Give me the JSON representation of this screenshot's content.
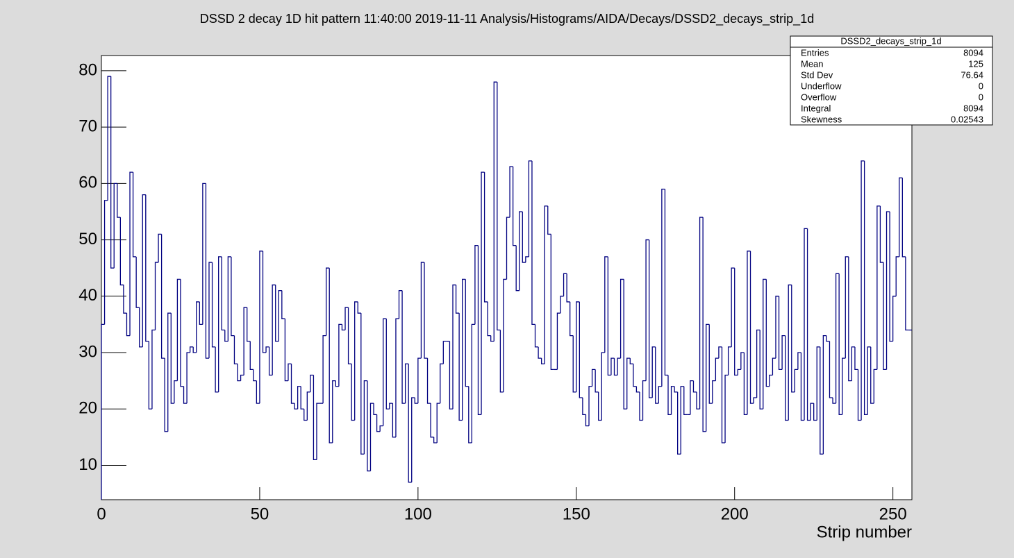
{
  "chart_data": {
    "type": "histogram",
    "title": "DSSD 2 decay 1D hit pattern  11:40:00  2019-11-11  Analysis/Histograms/AIDA/Decays/DSSD2_decays_strip_1d",
    "x_label": "Strip number",
    "color": "#000080",
    "xlim": [
      0,
      256
    ],
    "xticks": [
      0,
      50,
      100,
      150,
      200,
      250
    ],
    "ylim": [
      3.9,
      82.7
    ],
    "yticks": [
      10,
      20,
      30,
      40,
      50,
      60,
      70,
      80
    ],
    "bins": [
      0,
      1,
      2,
      3,
      4,
      5,
      6,
      7,
      8,
      9,
      10,
      11,
      12,
      13,
      14,
      15,
      16,
      17,
      18,
      19,
      20,
      21,
      22,
      23,
      24,
      25,
      26,
      27,
      28,
      29,
      30,
      31,
      32,
      33,
      34,
      35,
      36,
      37,
      38,
      39,
      40,
      41,
      42,
      43,
      44,
      45,
      46,
      47,
      48,
      49,
      50,
      51,
      52,
      53,
      54,
      55,
      56,
      57,
      58,
      59,
      60,
      61,
      62,
      63,
      64,
      65,
      66,
      67,
      68,
      69,
      70,
      71,
      72,
      73,
      74,
      75,
      76,
      77,
      78,
      79,
      80,
      81,
      82,
      83,
      84,
      85,
      86,
      87,
      88,
      89,
      90,
      91,
      92,
      93,
      94,
      95,
      96,
      97,
      98,
      99,
      100,
      101,
      102,
      103,
      104,
      105,
      106,
      107,
      108,
      109,
      110,
      111,
      112,
      113,
      114,
      115,
      116,
      117,
      118,
      119,
      120,
      121,
      122,
      123,
      124,
      125,
      126,
      127,
      128,
      129,
      130,
      131,
      132,
      133,
      134,
      135,
      136,
      137,
      138,
      139,
      140,
      141,
      142,
      143,
      144,
      145,
      146,
      147,
      148,
      149,
      150,
      151,
      152,
      153,
      154,
      155,
      156,
      157,
      158,
      159,
      160,
      161,
      162,
      163,
      164,
      165,
      166,
      167,
      168,
      169,
      170,
      171,
      172,
      173,
      174,
      175,
      176,
      177,
      178,
      179,
      180,
      181,
      182,
      183,
      184,
      185,
      186,
      187,
      188,
      189,
      190,
      191,
      192,
      193,
      194,
      195,
      196,
      197,
      198,
      199,
      200,
      201,
      202,
      203,
      204,
      205,
      206,
      207,
      208,
      209,
      210,
      211,
      212,
      213,
      214,
      215,
      216,
      217,
      218,
      219,
      220,
      221,
      222,
      223,
      224,
      225,
      226,
      227,
      228,
      229,
      230,
      231,
      232,
      233,
      234,
      235,
      236,
      237,
      238,
      239,
      240,
      241,
      242,
      243,
      244,
      245,
      246,
      247,
      248,
      249,
      250,
      251,
      252,
      253,
      254,
      255,
      256
    ],
    "values": [
      35,
      57,
      79,
      45,
      60,
      54,
      42,
      37,
      33,
      62,
      47,
      38,
      31,
      58,
      32,
      20,
      34,
      46,
      51,
      29,
      16,
      37,
      21,
      25,
      43,
      24,
      21,
      30,
      31,
      30,
      39,
      35,
      60,
      29,
      46,
      31,
      23,
      47,
      34,
      32,
      47,
      33,
      28,
      25,
      26,
      38,
      32,
      27,
      25,
      21,
      48,
      30,
      31,
      26,
      42,
      32,
      41,
      36,
      25,
      28,
      21,
      20,
      24,
      20,
      18,
      23,
      26,
      11,
      21,
      21,
      33,
      45,
      14,
      25,
      24,
      35,
      34,
      38,
      28,
      18,
      39,
      37,
      12,
      25,
      9,
      21,
      19,
      16,
      17,
      36,
      20,
      21,
      15,
      36,
      41,
      21,
      28,
      7,
      22,
      21,
      29,
      46,
      29,
      21,
      15,
      14,
      21,
      28,
      32,
      32,
      20,
      42,
      37,
      18,
      43,
      24,
      14,
      35,
      49,
      19,
      62,
      39,
      33,
      32,
      78,
      34,
      23,
      43,
      54,
      63,
      49,
      41,
      55,
      46,
      47,
      64,
      35,
      31,
      29,
      28,
      56,
      51,
      27,
      27,
      37,
      40,
      44,
      39,
      33,
      23,
      39,
      22,
      19,
      17,
      24,
      27,
      23,
      18,
      30,
      47,
      26,
      29,
      26,
      29,
      43,
      20,
      29,
      28,
      24,
      23,
      18,
      25,
      50,
      22,
      31,
      21,
      24,
      59,
      26,
      19,
      24,
      23,
      12,
      24,
      19,
      19,
      25,
      23,
      20,
      54,
      16,
      35,
      21,
      25,
      29,
      31,
      14,
      26,
      31,
      45,
      26,
      27,
      30,
      19,
      48,
      21,
      22,
      34,
      20,
      43,
      24,
      26,
      29,
      40,
      27,
      33,
      18,
      42,
      23,
      27,
      30,
      18,
      52,
      18,
      21,
      18,
      31,
      12,
      33,
      32,
      22,
      21,
      44,
      19,
      29,
      47,
      25,
      31,
      27,
      18,
      64,
      19,
      31,
      21,
      27,
      56,
      46,
      27,
      55,
      32,
      40,
      47,
      61,
      47,
      34,
      34
    ],
    "stats_box": {
      "title": "DSSD2_decays_strip_1d",
      "rows": [
        [
          "Entries",
          8094
        ],
        [
          "Mean",
          125
        ],
        [
          "Std Dev",
          76.64
        ],
        [
          "Underflow",
          0
        ],
        [
          "Overflow",
          0
        ],
        [
          "Integral",
          8094
        ],
        [
          "Skewness",
          0.02543
        ]
      ]
    }
  }
}
